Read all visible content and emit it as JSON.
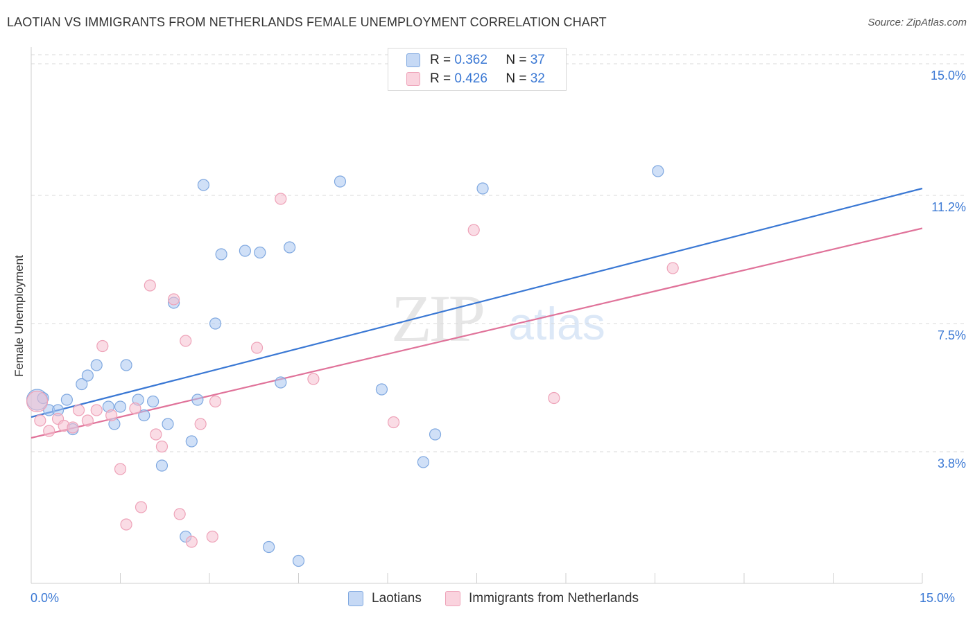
{
  "title": "LAOTIAN VS IMMIGRANTS FROM NETHERLANDS FEMALE UNEMPLOYMENT CORRELATION CHART",
  "source": "Source: ZipAtlas.com",
  "watermark": {
    "zip": "ZIP",
    "atlas": "atlas"
  },
  "legend_top": {
    "r_label": "R =",
    "n_label": "N =",
    "rows": [
      {
        "r": "0.362",
        "n": "37"
      },
      {
        "r": "0.426",
        "n": "32"
      }
    ]
  },
  "x_tick_labels": {
    "left": "0.0%",
    "right": "15.0%"
  },
  "colors": {
    "laotian_fill": "#a9c6f0",
    "laotian_stroke": "#7fa8e0",
    "laotian_line": "#3a78d4",
    "neth_fill": "#f6bfcf",
    "neth_stroke": "#eea2b8",
    "neth_line": "#e0739a",
    "tick_text": "#3a78d4",
    "grid": "#d9d9d9"
  },
  "chart_data": {
    "type": "scatter",
    "title": "LAOTIAN VS IMMIGRANTS FROM NETHERLANDS FEMALE UNEMPLOYMENT CORRELATION CHART",
    "xlabel": "",
    "ylabel": "Female Unemployment",
    "xlim": [
      0,
      15
    ],
    "ylim": [
      0.0,
      15.4
    ],
    "y_ticks": [
      {
        "value": 3.8,
        "label": "3.8%"
      },
      {
        "value": 7.5,
        "label": "7.5%"
      },
      {
        "value": 11.2,
        "label": "11.2%"
      },
      {
        "value": 15.0,
        "label": "15.0%"
      }
    ],
    "grid": "horizontal dashed",
    "legend_placement": "bottom-center",
    "series": [
      {
        "name": "Laotians",
        "color": "#a9c6f0",
        "trend": {
          "x": [
            0,
            15
          ],
          "y": [
            4.8,
            11.4
          ]
        },
        "points": [
          {
            "x": 0.1,
            "y": 5.3,
            "big": true
          },
          {
            "x": 0.2,
            "y": 5.35
          },
          {
            "x": 0.3,
            "y": 5.0
          },
          {
            "x": 0.45,
            "y": 5.0
          },
          {
            "x": 0.6,
            "y": 5.3
          },
          {
            "x": 0.7,
            "y": 4.45
          },
          {
            "x": 0.85,
            "y": 5.75
          },
          {
            "x": 0.95,
            "y": 6.0
          },
          {
            "x": 1.1,
            "y": 6.3
          },
          {
            "x": 1.3,
            "y": 5.1
          },
          {
            "x": 1.4,
            "y": 4.6
          },
          {
            "x": 1.5,
            "y": 5.1
          },
          {
            "x": 1.6,
            "y": 6.3
          },
          {
            "x": 1.8,
            "y": 5.3
          },
          {
            "x": 1.9,
            "y": 4.85
          },
          {
            "x": 2.05,
            "y": 5.25
          },
          {
            "x": 2.2,
            "y": 3.4
          },
          {
            "x": 2.3,
            "y": 4.6
          },
          {
            "x": 2.4,
            "y": 8.1
          },
          {
            "x": 2.6,
            "y": 1.35
          },
          {
            "x": 2.7,
            "y": 4.1
          },
          {
            "x": 2.8,
            "y": 5.3
          },
          {
            "x": 2.9,
            "y": 11.5
          },
          {
            "x": 3.1,
            "y": 7.5
          },
          {
            "x": 3.2,
            "y": 9.5
          },
          {
            "x": 3.6,
            "y": 9.6
          },
          {
            "x": 3.85,
            "y": 9.55
          },
          {
            "x": 4.0,
            "y": 1.05
          },
          {
            "x": 4.2,
            "y": 5.8
          },
          {
            "x": 4.35,
            "y": 9.7
          },
          {
            "x": 4.5,
            "y": 0.65
          },
          {
            "x": 5.2,
            "y": 11.6
          },
          {
            "x": 5.9,
            "y": 5.6
          },
          {
            "x": 6.6,
            "y": 3.5
          },
          {
            "x": 6.8,
            "y": 4.3
          },
          {
            "x": 7.6,
            "y": 11.4
          },
          {
            "x": 10.55,
            "y": 11.9
          }
        ]
      },
      {
        "name": "Immigrants from Netherlands",
        "color": "#f6bfcf",
        "trend": {
          "x": [
            0,
            15
          ],
          "y": [
            4.2,
            10.25
          ]
        },
        "points": [
          {
            "x": 0.1,
            "y": 5.25,
            "big": true
          },
          {
            "x": 0.15,
            "y": 4.7
          },
          {
            "x": 0.3,
            "y": 4.4
          },
          {
            "x": 0.45,
            "y": 4.75
          },
          {
            "x": 0.55,
            "y": 4.55
          },
          {
            "x": 0.7,
            "y": 4.5
          },
          {
            "x": 0.8,
            "y": 5.0
          },
          {
            "x": 0.95,
            "y": 4.7
          },
          {
            "x": 1.1,
            "y": 5.0
          },
          {
            "x": 1.2,
            "y": 6.85
          },
          {
            "x": 1.35,
            "y": 4.85
          },
          {
            "x": 1.5,
            "y": 3.3
          },
          {
            "x": 1.6,
            "y": 1.7
          },
          {
            "x": 1.75,
            "y": 5.05
          },
          {
            "x": 1.85,
            "y": 2.2
          },
          {
            "x": 2.0,
            "y": 8.6
          },
          {
            "x": 2.1,
            "y": 4.3
          },
          {
            "x": 2.2,
            "y": 3.95
          },
          {
            "x": 2.4,
            "y": 8.2
          },
          {
            "x": 2.5,
            "y": 2.0
          },
          {
            "x": 2.6,
            "y": 7.0
          },
          {
            "x": 2.7,
            "y": 1.2
          },
          {
            "x": 2.85,
            "y": 4.6
          },
          {
            "x": 3.05,
            "y": 1.35
          },
          {
            "x": 3.1,
            "y": 5.25
          },
          {
            "x": 3.8,
            "y": 6.8
          },
          {
            "x": 4.2,
            "y": 11.1
          },
          {
            "x": 4.75,
            "y": 5.9
          },
          {
            "x": 6.1,
            "y": 4.65
          },
          {
            "x": 7.45,
            "y": 10.2
          },
          {
            "x": 8.8,
            "y": 5.35
          },
          {
            "x": 10.8,
            "y": 9.1
          }
        ]
      }
    ]
  }
}
